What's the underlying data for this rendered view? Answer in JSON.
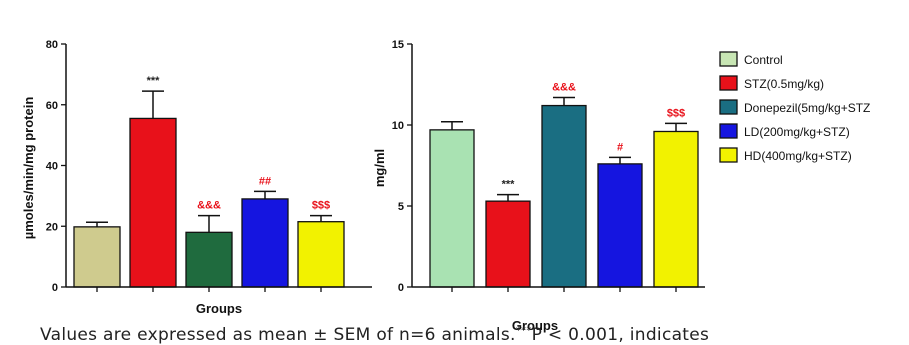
{
  "chart_data": [
    {
      "type": "bar",
      "categories": [
        "Control",
        "STZ(0.5mg/kg)",
        "Donepezil(5mg/kg+STZ",
        "LD(200mg/kg+STZ)",
        "HD(400mg/kg+STZ)"
      ],
      "values": [
        19.8,
        55.5,
        18,
        29,
        21.5
      ],
      "errors": [
        1.5,
        9,
        5.5,
        2.5,
        2
      ],
      "significance": [
        "",
        "***",
        "&&&",
        "##",
        "$$$"
      ],
      "ylabel": "µmoles/min/mg protein",
      "xlabel": "Groups",
      "ylim": [
        0,
        80
      ],
      "yticks": [
        0,
        20,
        40,
        60,
        80
      ]
    },
    {
      "type": "bar",
      "categories": [
        "Control",
        "STZ(0.5mg/kg)",
        "Donepezil(5mg/kg+STZ",
        "LD(200mg/kg+STZ)",
        "HD(400mg/kg+STZ)"
      ],
      "values": [
        9.7,
        5.3,
        11.2,
        7.6,
        9.6
      ],
      "errors": [
        0.5,
        0.4,
        0.5,
        0.4,
        0.5
      ],
      "significance": [
        "",
        "***",
        "&&&",
        "#",
        "$$$"
      ],
      "ylabel": "mg/ml",
      "xlabel": "Groups",
      "ylim": [
        0,
        15
      ],
      "yticks": [
        0,
        5,
        10,
        15
      ]
    }
  ],
  "legend": {
    "placement": "right",
    "items": [
      {
        "label": "Control",
        "color": "#c8e6b4"
      },
      {
        "label": "STZ(0.5mg/kg)",
        "color": "#e8111a"
      },
      {
        "label": "Donepezil(5mg/kg+STZ",
        "color": "#1a6e82"
      },
      {
        "label": "LD(200mg/kg+STZ)",
        "color": "#1515e0"
      },
      {
        "label": "HD(400mg/kg+STZ)",
        "color": "#f2f200"
      }
    ]
  },
  "colors": {
    "chart1": [
      "#cfcb8e",
      "#e8111a",
      "#1f6b3e",
      "#1515e0",
      "#f2f200"
    ],
    "chart2": [
      "#a9e2b2",
      "#e8111a",
      "#1a6e82",
      "#1515e0",
      "#f2f200"
    ],
    "significance_star": "#222222",
    "significance_symbol": "#e8111a"
  },
  "caption": {
    "text": "Values are expressed as mean ± SEM of n=6 animals.",
    "sup": "***",
    "text_after": "P < 0.001, indicates"
  }
}
